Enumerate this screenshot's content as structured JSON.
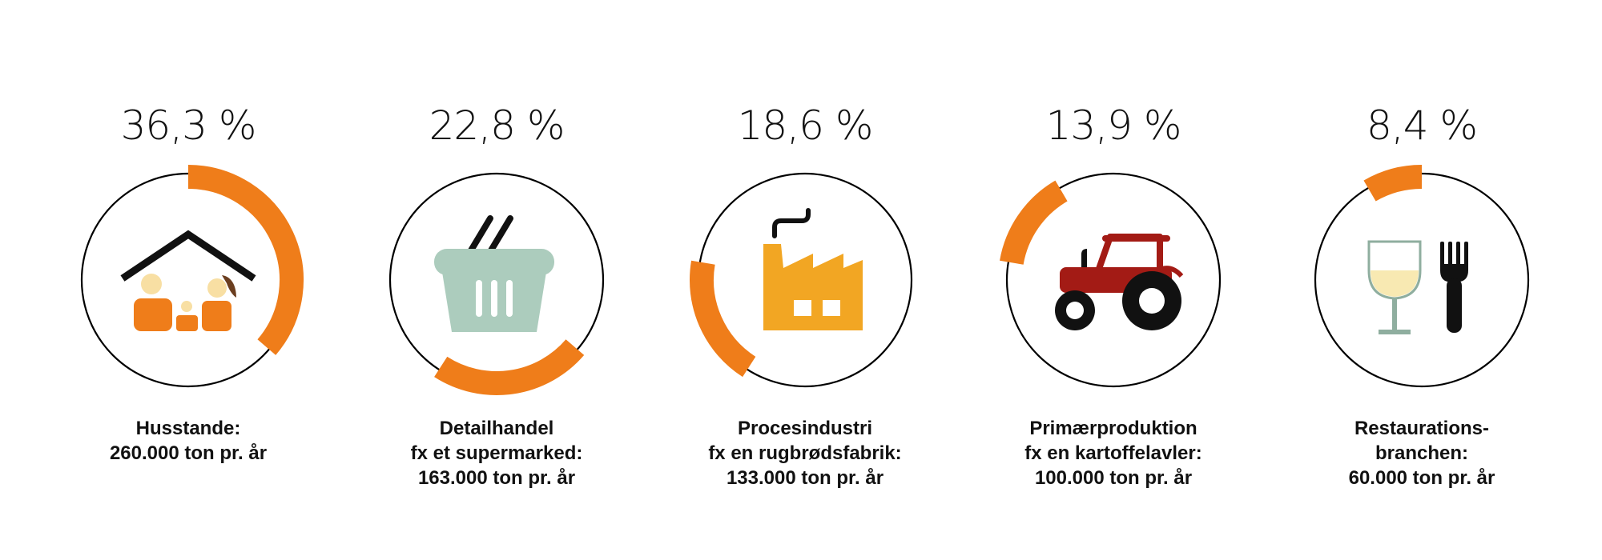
{
  "chart_data": {
    "type": "pie",
    "title": "",
    "unit": "%",
    "colors": {
      "arc": "#ef7d1a",
      "ring": "#000000"
    },
    "categories": [
      "Husstande",
      "Detailhandel",
      "Procesindustri",
      "Primærproduktion",
      "Restaurationsbranchen"
    ],
    "values": [
      36.3,
      22.8,
      18.6,
      13.9,
      8.4
    ],
    "items": [
      {
        "percent_label": "36,3 %",
        "value": 36.3,
        "start_fraction": 0.0,
        "icon": "house-family-icon",
        "caption": [
          "Husstande:",
          "260.000 ton pr. år"
        ]
      },
      {
        "percent_label": "22,8 %",
        "value": 22.8,
        "start_fraction": 0.363,
        "icon": "shopping-basket-icon",
        "caption": [
          "Detailhandel",
          "fx et supermarked:",
          "163.000 ton pr. år"
        ]
      },
      {
        "percent_label": "18,6 %",
        "value": 18.6,
        "start_fraction": 0.591,
        "icon": "factory-icon",
        "caption": [
          "Procesindustri",
          "fx en rugbrødsfabrik:",
          "133.000 ton pr. år"
        ]
      },
      {
        "percent_label": "13,9 %",
        "value": 13.9,
        "start_fraction": 0.777,
        "icon": "tractor-icon",
        "caption": [
          "Primærproduktion",
          "fx en kartoffelavler:",
          "100.000 ton pr. år"
        ]
      },
      {
        "percent_label": "8,4 %",
        "value": 8.4,
        "start_fraction": 0.916,
        "icon": "wine-glass-fork-icon",
        "caption": [
          "Restaurations-",
          "branchen:",
          "60.000 ton pr. år"
        ]
      }
    ]
  }
}
